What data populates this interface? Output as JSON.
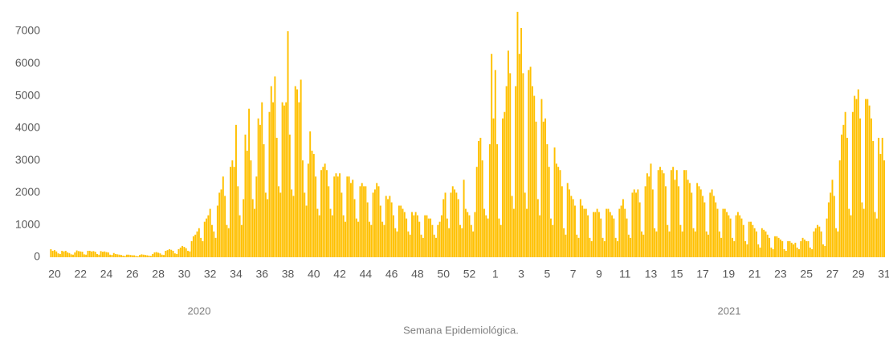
{
  "chart_data": {
    "type": "bar",
    "x_label": "Semana Epidemiológica.",
    "annotations": [
      "2020",
      "2021"
    ],
    "color": "#FFC000",
    "grid": false,
    "ylim": [
      0,
      8000
    ],
    "yticks": [
      0,
      1000,
      2000,
      3000,
      4000,
      5000,
      6000,
      7000
    ],
    "categories": [
      null,
      null,
      "20",
      null,
      null,
      null,
      null,
      null,
      null,
      null,
      null,
      null,
      null,
      null,
      null,
      null,
      "22",
      null,
      null,
      null,
      null,
      null,
      null,
      null,
      null,
      null,
      null,
      null,
      null,
      null,
      "24",
      null,
      null,
      null,
      null,
      null,
      null,
      null,
      null,
      null,
      null,
      null,
      null,
      null,
      "26",
      null,
      null,
      null,
      null,
      null,
      null,
      null,
      null,
      null,
      null,
      null,
      null,
      null,
      "28",
      null,
      null,
      null,
      null,
      null,
      null,
      null,
      null,
      null,
      null,
      null,
      null,
      null,
      "30",
      null,
      null,
      null,
      null,
      null,
      null,
      null,
      null,
      null,
      null,
      null,
      null,
      null,
      "32",
      null,
      null,
      null,
      null,
      null,
      null,
      null,
      null,
      null,
      null,
      null,
      null,
      null,
      "34",
      null,
      null,
      null,
      null,
      null,
      null,
      null,
      null,
      null,
      null,
      null,
      null,
      null,
      "36",
      null,
      null,
      null,
      null,
      null,
      null,
      null,
      null,
      null,
      null,
      null,
      null,
      null,
      "38",
      null,
      null,
      null,
      null,
      null,
      null,
      null,
      null,
      null,
      null,
      null,
      null,
      null,
      "40",
      null,
      null,
      null,
      null,
      null,
      null,
      null,
      null,
      null,
      null,
      null,
      null,
      null,
      "42",
      null,
      null,
      null,
      null,
      null,
      null,
      null,
      null,
      null,
      null,
      null,
      null,
      null,
      "44",
      null,
      null,
      null,
      null,
      null,
      null,
      null,
      null,
      null,
      null,
      null,
      null,
      null,
      "46",
      null,
      null,
      null,
      null,
      null,
      null,
      null,
      null,
      null,
      null,
      null,
      null,
      null,
      "48",
      null,
      null,
      null,
      null,
      null,
      null,
      null,
      null,
      null,
      null,
      null,
      null,
      null,
      "50",
      null,
      null,
      null,
      null,
      null,
      null,
      null,
      null,
      null,
      null,
      null,
      null,
      null,
      "52",
      null,
      null,
      null,
      null,
      null,
      null,
      null,
      null,
      null,
      null,
      null,
      null,
      null,
      "1",
      null,
      null,
      null,
      null,
      null,
      null,
      null,
      null,
      null,
      null,
      null,
      null,
      null,
      "3",
      null,
      null,
      null,
      null,
      null,
      null,
      null,
      null,
      null,
      null,
      null,
      null,
      null,
      "5",
      null,
      null,
      null,
      null,
      null,
      null,
      null,
      null,
      null,
      null,
      null,
      null,
      null,
      "7",
      null,
      null,
      null,
      null,
      null,
      null,
      null,
      null,
      null,
      null,
      null,
      null,
      null,
      "9",
      null,
      null,
      null,
      null,
      null,
      null,
      null,
      null,
      null,
      null,
      null,
      null,
      null,
      "11",
      null,
      null,
      null,
      null,
      null,
      null,
      null,
      null,
      null,
      null,
      null,
      null,
      null,
      "13",
      null,
      null,
      null,
      null,
      null,
      null,
      null,
      null,
      null,
      null,
      null,
      null,
      null,
      "15",
      null,
      null,
      null,
      null,
      null,
      null,
      null,
      null,
      null,
      null,
      null,
      null,
      null,
      "17",
      null,
      null,
      null,
      null,
      null,
      null,
      null,
      null,
      null,
      null,
      null,
      null,
      null,
      "19",
      null,
      null,
      null,
      null,
      null,
      null,
      null,
      null,
      null,
      null,
      null,
      null,
      null,
      "21",
      null,
      null,
      null,
      null,
      null,
      null,
      null,
      null,
      null,
      null,
      null,
      null,
      null,
      "23",
      null,
      null,
      null,
      null,
      null,
      null,
      null,
      null,
      null,
      null,
      null,
      null,
      null,
      "25",
      null,
      null,
      null,
      null,
      null,
      null,
      null,
      null,
      null,
      null,
      null,
      null,
      null,
      "27",
      null,
      null,
      null,
      null,
      null,
      null,
      null,
      null,
      null,
      null,
      null,
      null,
      null,
      "29",
      null,
      null,
      null,
      null,
      null,
      null,
      null,
      null,
      null,
      null,
      null,
      null,
      null,
      "31"
    ],
    "values": [
      250,
      200,
      220,
      180,
      120,
      100,
      200,
      180,
      200,
      150,
      130,
      90,
      80,
      150,
      210,
      190,
      180,
      170,
      90,
      80,
      200,
      200,
      180,
      190,
      170,
      100,
      80,
      190,
      170,
      180,
      160,
      150,
      80,
      70,
      130,
      100,
      90,
      80,
      70,
      50,
      40,
      80,
      80,
      70,
      60,
      60,
      40,
      30,
      70,
      90,
      80,
      70,
      60,
      50,
      40,
      100,
      150,
      160,
      140,
      120,
      80,
      70,
      200,
      220,
      250,
      230,
      200,
      120,
      100,
      250,
      300,
      350,
      320,
      280,
      200,
      180,
      500,
      650,
      700,
      800,
      900,
      600,
      500,
      1100,
      1200,
      1300,
      1500,
      1000,
      800,
      600,
      1600,
      2000,
      2100,
      2500,
      1900,
      1000,
      900,
      2800,
      3000,
      2800,
      4100,
      2200,
      1300,
      1000,
      1800,
      3800,
      3300,
      4600,
      3000,
      1800,
      1500,
      2500,
      4300,
      4100,
      4800,
      3500,
      2000,
      1800,
      4500,
      5300,
      4800,
      5600,
      3700,
      2200,
      2000,
      4800,
      4700,
      4800,
      7000,
      3800,
      2100,
      1900,
      5300,
      5200,
      4800,
      5500,
      3000,
      2000,
      1600,
      2900,
      3900,
      3300,
      3200,
      2500,
      1500,
      1300,
      2700,
      2800,
      2900,
      2700,
      2200,
      1500,
      1300,
      2500,
      2600,
      2500,
      2600,
      2000,
      1300,
      1100,
      2500,
      2500,
      2300,
      2400,
      1800,
      1200,
      1100,
      2200,
      2300,
      2200,
      2200,
      1700,
      1100,
      1000,
      2000,
      2100,
      2300,
      2200,
      1600,
      1100,
      1000,
      1900,
      1800,
      1900,
      1700,
      1300,
      900,
      800,
      1600,
      1600,
      1500,
      1400,
      1200,
      800,
      700,
      1400,
      1300,
      1400,
      1300,
      1100,
      700,
      600,
      1300,
      1300,
      1200,
      1200,
      1000,
      700,
      600,
      1000,
      1100,
      1300,
      1800,
      2000,
      1200,
      900,
      2000,
      2200,
      2100,
      2000,
      1800,
      1000,
      900,
      2400,
      1500,
      1400,
      1300,
      1000,
      800,
      1400,
      2800,
      3600,
      3700,
      3000,
      1500,
      1300,
      1200,
      3500,
      6300,
      4300,
      5800,
      3500,
      1200,
      1000,
      4300,
      4500,
      5300,
      6400,
      5700,
      1900,
      1500,
      5300,
      7600,
      6300,
      7100,
      5700,
      2000,
      1500,
      5800,
      5900,
      5300,
      5000,
      4200,
      1800,
      1300,
      4900,
      4200,
      4300,
      3500,
      2800,
      1200,
      1000,
      3400,
      2900,
      2800,
      2700,
      2200,
      900,
      700,
      2300,
      2100,
      1900,
      1800,
      1600,
      700,
      600,
      1800,
      1600,
      1500,
      1500,
      1300,
      600,
      500,
      1400,
      1400,
      1500,
      1400,
      1200,
      600,
      500,
      1500,
      1500,
      1400,
      1300,
      1200,
      600,
      500,
      1500,
      1600,
      1800,
      1500,
      1200,
      700,
      600,
      2000,
      2100,
      2000,
      2100,
      1700,
      800,
      700,
      2200,
      2600,
      2500,
      2900,
      2100,
      900,
      800,
      2700,
      2800,
      2700,
      2600,
      2200,
      1000,
      800,
      2700,
      2800,
      2400,
      2700,
      2200,
      1000,
      800,
      2700,
      2700,
      2400,
      2300,
      2000,
      900,
      800,
      2300,
      2200,
      2100,
      1900,
      1700,
      800,
      700,
      2000,
      2100,
      1900,
      1700,
      1500,
      800,
      600,
      1500,
      1500,
      1400,
      1300,
      1200,
      600,
      500,
      1300,
      1400,
      1300,
      1200,
      1000,
      500,
      400,
      1100,
      1100,
      1000,
      900,
      800,
      400,
      300,
      900,
      850,
      800,
      700,
      600,
      300,
      250,
      650,
      650,
      600,
      550,
      500,
      250,
      200,
      500,
      500,
      450,
      400,
      450,
      300,
      250,
      500,
      600,
      550,
      500,
      500,
      300,
      250,
      800,
      900,
      1000,
      950,
      800,
      400,
      350,
      1200,
      1700,
      2000,
      2400,
      1900,
      900,
      800,
      3000,
      3800,
      4100,
      4500,
      3700,
      1500,
      1300,
      4500,
      5000,
      4900,
      5200,
      4300,
      1700,
      1500,
      4900,
      4900,
      4700,
      4300,
      3600,
      1400,
      1200,
      3700,
      3200,
      3700,
      3000
    ]
  }
}
